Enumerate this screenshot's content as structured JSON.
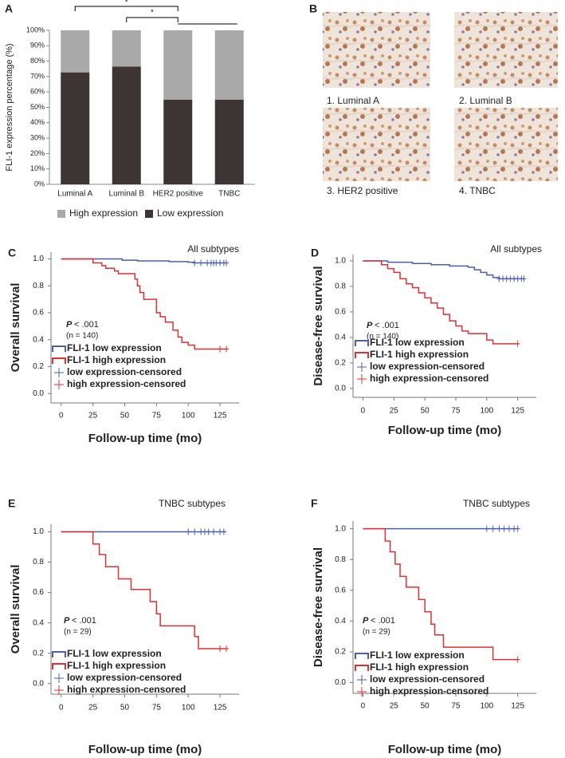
{
  "chart_data": [
    {
      "type": "bar",
      "stacked": true,
      "panel_label": "A",
      "ylabel": "FLI-1 expression percentage (%)",
      "categories": [
        "Luminal A",
        "Luminal B",
        "HER2 positive",
        "TNBC"
      ],
      "series": [
        {
          "name": "High expression",
          "color": "#a9a9a9",
          "values": [
            27.3,
            23.5,
            45,
            45
          ]
        },
        {
          "name": "Low expression",
          "color": "#3d3533",
          "values": [
            72.7,
            76.5,
            55,
            55
          ]
        }
      ],
      "ylim": [
        0,
        100
      ],
      "yticks": [
        {
          "value": 0,
          "label": "0%"
        },
        {
          "value": 10,
          "label": "10%"
        },
        {
          "value": 20,
          "label": "20%"
        },
        {
          "value": 30,
          "label": "30%"
        },
        {
          "value": 40,
          "label": "40%"
        },
        {
          "value": 50,
          "label": "50%"
        },
        {
          "value": 60,
          "label": "60%"
        },
        {
          "value": 70,
          "label": "70%"
        },
        {
          "value": 80,
          "label": "80%"
        },
        {
          "value": 90,
          "label": "90%"
        },
        {
          "value": 100,
          "label": "100%"
        }
      ],
      "annotations": [
        "*",
        "*"
      ]
    },
    {
      "type": "km",
      "panel_label": "C",
      "title": "All subtypes",
      "xlabel": "Follow-up time (mo)",
      "ylabel": "Overall survival",
      "p_label": "P",
      "p_value": "< .001",
      "n_label": "(n = 140)",
      "xlim": [
        -8,
        140
      ],
      "xticks": [
        0,
        25,
        50,
        75,
        100,
        125
      ],
      "ylim": [
        -0.07,
        1.05
      ],
      "yticks": [
        {
          "value": 0,
          "label": "0.0"
        },
        0.2,
        0.4,
        0.6,
        0.8,
        {
          "value": 1,
          "label": "1.0"
        }
      ],
      "series": [
        {
          "name": "FLI-1 low expression",
          "color": "#4a5fb0",
          "kind": "step",
          "x": [
            0,
            48,
            60,
            85,
            100,
            105,
            130
          ],
          "values": [
            1,
            0.99,
            0.985,
            0.98,
            0.975,
            0.97,
            0.97
          ]
        },
        {
          "name": "FLI-1 high expression",
          "color": "#e03030",
          "kind": "step",
          "x": [
            0,
            25,
            32,
            35,
            42,
            45,
            58,
            60,
            62,
            65,
            75,
            78,
            82,
            88,
            92,
            95,
            100,
            105,
            130
          ],
          "values": [
            1,
            0.97,
            0.95,
            0.93,
            0.91,
            0.89,
            0.85,
            0.8,
            0.75,
            0.7,
            0.6,
            0.57,
            0.53,
            0.47,
            0.42,
            0.38,
            0.36,
            0.33,
            0.33
          ]
        },
        {
          "name": "low expression-censored",
          "color": "#4a5fb0",
          "kind": "censor",
          "x": [
            105,
            110,
            115,
            118,
            120,
            122,
            125,
            128,
            130
          ],
          "values": [
            0.97,
            0.97,
            0.97,
            0.97,
            0.97,
            0.97,
            0.97,
            0.97,
            0.97
          ]
        },
        {
          "name": "high expression-censored",
          "color": "#e03030",
          "kind": "censor",
          "x": [
            125,
            130
          ],
          "values": [
            0.33,
            0.33
          ]
        }
      ]
    },
    {
      "type": "km",
      "panel_label": "D",
      "title": "All subtypes",
      "xlabel": "Follow-up time (mo)",
      "ylabel": "Disease-free survival",
      "p_label": "P",
      "p_value": "< .001",
      "n_label": "(n = 140)",
      "xlim": [
        -8,
        140
      ],
      "xticks": [
        0,
        25,
        50,
        75,
        100,
        125
      ],
      "ylim": [
        -0.07,
        1.05
      ],
      "yticks": [
        {
          "value": 0,
          "label": "0.0"
        },
        0.2,
        0.4,
        0.6,
        0.8,
        {
          "value": 1,
          "label": "1.0"
        }
      ],
      "series": [
        {
          "name": "FLI-1 low expression",
          "color": "#4a5fb0",
          "kind": "step",
          "x": [
            0,
            20,
            40,
            55,
            70,
            85,
            90,
            95,
            100,
            105,
            110,
            130
          ],
          "values": [
            1,
            0.99,
            0.98,
            0.97,
            0.96,
            0.95,
            0.93,
            0.91,
            0.89,
            0.87,
            0.86,
            0.86
          ]
        },
        {
          "name": "FLI-1 high expression",
          "color": "#e03030",
          "kind": "step",
          "x": [
            0,
            15,
            20,
            25,
            30,
            35,
            40,
            45,
            50,
            55,
            60,
            65,
            70,
            75,
            80,
            85,
            100,
            105,
            125
          ],
          "values": [
            1,
            0.97,
            0.94,
            0.91,
            0.86,
            0.82,
            0.79,
            0.75,
            0.71,
            0.67,
            0.63,
            0.58,
            0.53,
            0.49,
            0.45,
            0.43,
            0.38,
            0.35,
            0.35
          ]
        },
        {
          "name": "low expression-censored",
          "color": "#4a5fb0",
          "kind": "censor",
          "x": [
            110,
            113,
            116,
            119,
            122,
            125,
            128,
            130
          ],
          "values": [
            0.86,
            0.86,
            0.86,
            0.86,
            0.86,
            0.86,
            0.86,
            0.86
          ]
        },
        {
          "name": "high expression-censored",
          "color": "#e03030",
          "kind": "censor",
          "x": [
            125
          ],
          "values": [
            0.35
          ]
        }
      ]
    },
    {
      "type": "km",
      "panel_label": "E",
      "title": "TNBC subtypes",
      "xlabel": "Follow-up time (mo)",
      "ylabel": "Overall survival",
      "p_label": "P",
      "p_value": "< .001",
      "n_label": "(n = 29)",
      "xlim": [
        -8,
        140
      ],
      "xticks": [
        0,
        25,
        50,
        75,
        100,
        125
      ],
      "ylim": [
        -0.07,
        1.05
      ],
      "yticks": [
        {
          "value": 0,
          "label": "0.0"
        },
        0.2,
        0.4,
        0.6,
        0.8,
        {
          "value": 1,
          "label": "1.0"
        }
      ],
      "series": [
        {
          "name": "FLI-1 low expression",
          "color": "#4a5fb0",
          "kind": "step",
          "x": [
            0,
            130
          ],
          "values": [
            1,
            1
          ]
        },
        {
          "name": "FLI-1 high expression",
          "color": "#e03030",
          "kind": "step",
          "x": [
            0,
            25,
            30,
            35,
            45,
            55,
            70,
            75,
            78,
            105,
            108,
            130
          ],
          "values": [
            1,
            0.92,
            0.85,
            0.77,
            0.69,
            0.62,
            0.54,
            0.46,
            0.38,
            0.31,
            0.23,
            0.23
          ]
        },
        {
          "name": "low expression-censored",
          "color": "#4a5fb0",
          "kind": "censor",
          "x": [
            100,
            105,
            110,
            113,
            116,
            120,
            125,
            128
          ],
          "values": [
            1,
            1,
            1,
            1,
            1,
            1,
            1,
            1
          ]
        },
        {
          "name": "high expression-censored",
          "color": "#e03030",
          "kind": "censor",
          "x": [
            125,
            130
          ],
          "values": [
            0.23,
            0.23
          ]
        }
      ]
    },
    {
      "type": "km",
      "panel_label": "F",
      "title": "TNBC subtypes",
      "xlabel": "Follow-up time (mo)",
      "ylabel": "Disease-free survival",
      "p_label": "P",
      "p_value": "< .001",
      "n_label": "(n = 29)",
      "xlim": [
        -8,
        140
      ],
      "xticks": [
        0,
        25,
        50,
        75,
        100,
        125
      ],
      "ylim": [
        -0.07,
        1.05
      ],
      "yticks": [
        {
          "value": 0,
          "label": "0.0"
        },
        0.2,
        0.4,
        0.6,
        0.8,
        {
          "value": 1,
          "label": "1.0"
        }
      ],
      "series": [
        {
          "name": "FLI-1 low expression",
          "color": "#4a5fb0",
          "kind": "step",
          "x": [
            0,
            125
          ],
          "values": [
            1,
            1
          ]
        },
        {
          "name": "FLI-1 high expression",
          "color": "#e03030",
          "kind": "step",
          "x": [
            0,
            18,
            22,
            26,
            30,
            35,
            45,
            50,
            55,
            58,
            65,
            105,
            125
          ],
          "values": [
            1,
            0.92,
            0.85,
            0.77,
            0.69,
            0.62,
            0.54,
            0.46,
            0.38,
            0.31,
            0.23,
            0.15,
            0.15
          ]
        },
        {
          "name": "low expression-censored",
          "color": "#4a5fb0",
          "kind": "censor",
          "x": [
            100,
            105,
            110,
            114,
            118,
            122,
            125
          ],
          "values": [
            1,
            1,
            1,
            1,
            1,
            1,
            1
          ]
        },
        {
          "name": "high expression-censored",
          "color": "#e03030",
          "kind": "censor",
          "x": [
            125
          ],
          "values": [
            0.15
          ]
        }
      ]
    }
  ],
  "panel_b": {
    "panel_label": "B",
    "images": [
      {
        "label": "1. Luminal A"
      },
      {
        "label": "2. Luminal B"
      },
      {
        "label": "3. HER2 positive"
      },
      {
        "label": "4. TNBC"
      }
    ]
  }
}
